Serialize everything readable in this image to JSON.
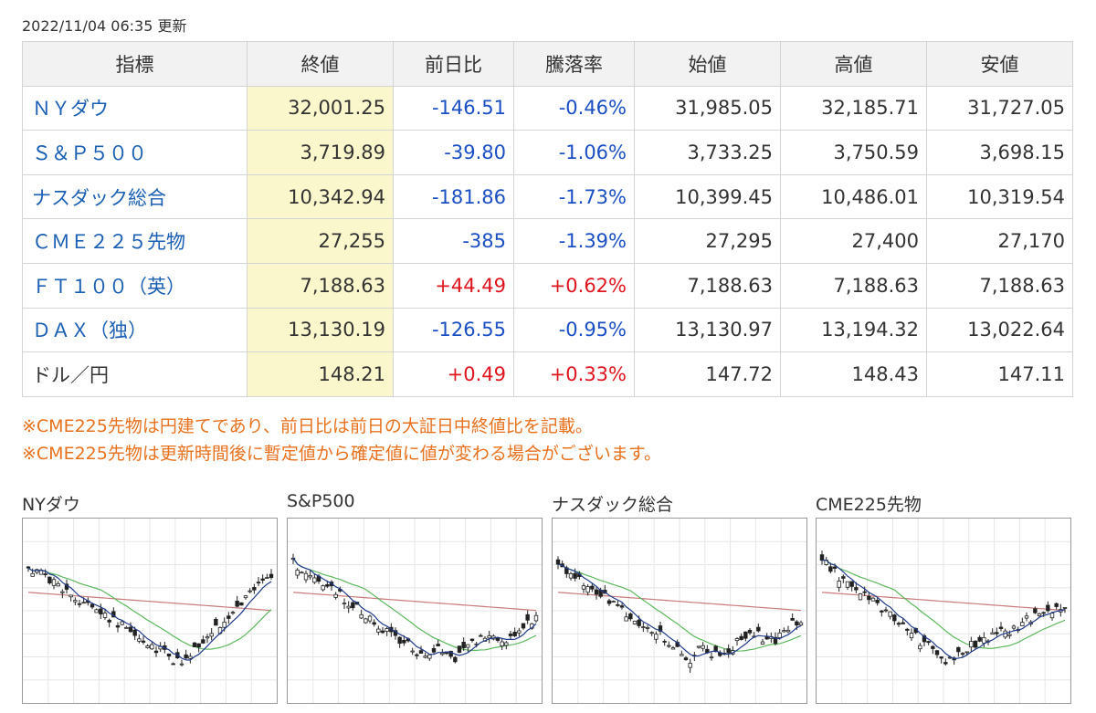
{
  "updated": "2022/11/04 06:35 更新",
  "table": {
    "headers": [
      "指標",
      "終値",
      "前日比",
      "騰落率",
      "始値",
      "高値",
      "安値"
    ],
    "rows": [
      {
        "name": "ＮＹダウ",
        "close": "32,001.25",
        "change": "-146.51",
        "rate": "-0.46%",
        "open": "31,985.05",
        "high": "32,185.71",
        "low": "31,727.05",
        "dir": "neg",
        "link": true
      },
      {
        "name": "Ｓ＆Ｐ５００",
        "close": "3,719.89",
        "change": "-39.80",
        "rate": "-1.06%",
        "open": "3,733.25",
        "high": "3,750.59",
        "low": "3,698.15",
        "dir": "neg",
        "link": true
      },
      {
        "name": "ナスダック総合",
        "close": "10,342.94",
        "change": "-181.86",
        "rate": "-1.73%",
        "open": "10,399.45",
        "high": "10,486.01",
        "low": "10,319.54",
        "dir": "neg",
        "link": true
      },
      {
        "name": "ＣＭＥ２２５先物",
        "close": "27,255",
        "change": "-385",
        "rate": "-1.39%",
        "open": "27,295",
        "high": "27,400",
        "low": "27,170",
        "dir": "neg",
        "link": true
      },
      {
        "name": "ＦＴ１００（英）",
        "close": "7,188.63",
        "change": "+44.49",
        "rate": "+0.62%",
        "open": "7,188.63",
        "high": "7,188.63",
        "low": "7,188.63",
        "dir": "pos",
        "link": true
      },
      {
        "name": "ＤＡＸ（独）",
        "close": "13,130.19",
        "change": "-126.55",
        "rate": "-0.95%",
        "open": "13,130.97",
        "high": "13,194.32",
        "low": "13,022.64",
        "dir": "neg",
        "link": true
      },
      {
        "name": "ドル／円",
        "close": "148.21",
        "change": "+0.49",
        "rate": "+0.33%",
        "open": "147.72",
        "high": "148.43",
        "low": "147.11",
        "dir": "pos",
        "link": false
      }
    ]
  },
  "notes": [
    "※CME225先物は円建てであり、前日比は前日の大証日中終値比を記載。",
    "※CME225先物は更新時間後に暫定値から確定値に値が変わる場合がございます。"
  ],
  "charts": [
    {
      "title": "NYダウ",
      "seed": 11,
      "shape": "vee"
    },
    {
      "title": "S&P500",
      "seed": 23,
      "shape": "down"
    },
    {
      "title": "ナスダック総合",
      "seed": 37,
      "shape": "down"
    },
    {
      "title": "CME225先物",
      "seed": 53,
      "shape": "dip"
    }
  ],
  "colors": {
    "up": "#1a4fc4",
    "down": "#e0141e",
    "link": "#1a5fb4",
    "note": "#e8711d",
    "ma_short": "#1f3a8a",
    "ma_mid": "#5cb85c",
    "ma_long": "#c97a7a"
  }
}
